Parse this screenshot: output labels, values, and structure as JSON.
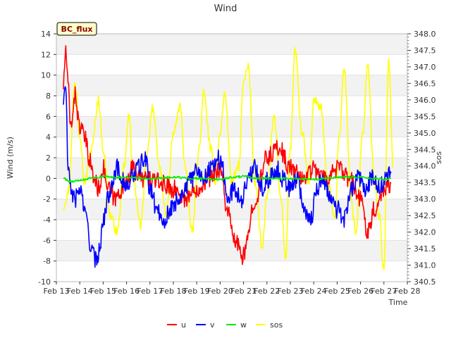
{
  "chart_data": {
    "type": "line",
    "title": "Wind",
    "badge": "BC_flux",
    "xlabel": "Time",
    "ylabel": "Wind (m/s)",
    "y2label": "sos",
    "xlim": [
      13,
      28
    ],
    "ylim": [
      -10,
      14
    ],
    "y2lim": [
      340.5,
      348.0
    ],
    "x_tick_values": [
      13,
      14,
      15,
      16,
      17,
      18,
      19,
      20,
      21,
      22,
      23,
      24,
      25,
      26,
      27,
      28
    ],
    "x_tick_labels": [
      "Feb 13",
      "Feb 14",
      "Feb 15",
      "Feb 16",
      "Feb 17",
      "Feb 18",
      "Feb 19",
      "Feb 20",
      "Feb 21",
      "Feb 22",
      "Feb 23",
      "Feb 24",
      "Feb 25",
      "Feb 26",
      "Feb 27",
      "Feb 28"
    ],
    "y_ticks": [
      "-10",
      "-8",
      "-6",
      "-4",
      "-2",
      "0",
      "2",
      "4",
      "6",
      "8",
      "10",
      "12",
      "14"
    ],
    "y2_ticks": [
      "340.5",
      "341.0",
      "341.5",
      "342.0",
      "342.5",
      "343.0",
      "343.5",
      "344.0",
      "344.5",
      "345.0",
      "345.5",
      "346.0",
      "346.5",
      "347.0",
      "347.5",
      "348.0"
    ],
    "legend": [
      "u",
      "v",
      "w",
      "sos"
    ],
    "series": [
      {
        "name": "u",
        "axis": "left",
        "color": "#ff0000",
        "x": [
          13.3,
          13.4,
          13.5,
          13.6,
          13.8,
          14.0,
          14.2,
          14.4,
          14.6,
          14.8,
          15.0,
          15.2,
          15.5,
          15.8,
          16.0,
          16.3,
          16.6,
          17.0,
          17.5,
          18.0,
          18.5,
          19.0,
          19.5,
          20.0,
          20.3,
          20.6,
          21.0,
          21.5,
          22.0,
          22.5,
          23.0,
          23.5,
          24.0,
          24.5,
          25.0,
          25.5,
          26.0,
          26.3,
          26.6,
          27.0,
          27.3
        ],
        "values": [
          9,
          12.5,
          9,
          5,
          8,
          5,
          4,
          2,
          0,
          -1,
          1,
          -1,
          -2,
          -1,
          0,
          1,
          0,
          0,
          -0.5,
          -1,
          -2,
          -1,
          0,
          1,
          -3,
          -6,
          -7.5,
          -2,
          2,
          3,
          1,
          0,
          1,
          0,
          1,
          0,
          -2,
          -5,
          -3,
          -1,
          -0.5
        ]
      },
      {
        "name": "v",
        "axis": "left",
        "color": "#0000ff",
        "x": [
          13.3,
          13.4,
          13.5,
          13.6,
          13.8,
          14.0,
          14.3,
          14.5,
          14.7,
          14.9,
          15.0,
          15.2,
          15.4,
          15.6,
          15.8,
          16.0,
          16.2,
          16.5,
          16.8,
          17.0,
          17.3,
          17.6,
          17.9,
          18.2,
          18.5,
          18.8,
          19.0,
          19.3,
          19.6,
          19.9,
          20.1,
          20.3,
          20.6,
          20.9,
          21.2,
          21.5,
          21.8,
          22.1,
          22.4,
          22.7,
          23.0,
          23.3,
          23.6,
          23.9,
          24.1,
          24.4,
          24.7,
          25.0,
          25.3,
          25.6,
          25.9,
          26.2,
          26.5,
          26.8,
          27.1,
          27.3
        ],
        "values": [
          7.5,
          9,
          1,
          -1,
          -2,
          -1,
          -4,
          -7,
          -8,
          -6,
          -4,
          -2,
          0,
          1,
          0,
          -1,
          0,
          1,
          2,
          -1,
          -3,
          -4,
          -3,
          -2,
          -1,
          0,
          1,
          0,
          1,
          2,
          1,
          -2,
          -1,
          -2,
          0,
          1,
          -1,
          0,
          1,
          0,
          -1,
          0,
          -3,
          -4,
          -1,
          0,
          -2,
          -3,
          -4,
          -1,
          0,
          -1,
          0,
          -1,
          0,
          0.5
        ]
      },
      {
        "name": "w",
        "axis": "left",
        "color": "#00ee00",
        "x": [
          13.3,
          13.6,
          14.0,
          14.5,
          15.0,
          15.5,
          16.0,
          17.0,
          18.0,
          19.0,
          20.0,
          20.5,
          21.0,
          21.5,
          22.0,
          23.0,
          24.0,
          25.0,
          26.0,
          26.5,
          27.0,
          27.3
        ],
        "values": [
          0,
          -0.3,
          -0.2,
          0,
          0.2,
          0.1,
          0.1,
          0,
          0.1,
          0,
          -0.1,
          0.1,
          0.2,
          0,
          0,
          0,
          -0.1,
          0.1,
          0.1,
          0,
          -0.1,
          0
        ]
      },
      {
        "name": "sos",
        "axis": "right",
        "color": "#ffff00",
        "x": [
          13.3,
          13.5,
          13.8,
          14.0,
          14.2,
          14.5,
          14.8,
          15.0,
          15.3,
          15.6,
          15.9,
          16.1,
          16.3,
          16.6,
          16.9,
          17.1,
          17.4,
          17.7,
          18.0,
          18.3,
          18.5,
          18.8,
          19.1,
          19.3,
          19.6,
          19.8,
          20.0,
          20.2,
          20.5,
          20.8,
          21.0,
          21.2,
          21.5,
          21.8,
          22.0,
          22.3,
          22.6,
          22.8,
          23.0,
          23.2,
          23.5,
          23.8,
          24.0,
          24.3,
          24.6,
          24.9,
          25.1,
          25.3,
          25.6,
          25.8,
          26.1,
          26.3,
          26.6,
          26.8,
          27.0,
          27.2,
          27.4
        ],
        "values": [
          342.8,
          343.2,
          346.5,
          345.0,
          343.5,
          344.5,
          346.0,
          344.5,
          342.5,
          342.0,
          344.0,
          345.5,
          343.5,
          342.2,
          344.5,
          345.8,
          344.0,
          342.5,
          345.0,
          345.8,
          344.0,
          342.0,
          344.5,
          346.2,
          344.5,
          343.5,
          345.0,
          346.2,
          343.5,
          344.0,
          346.5,
          347.0,
          343.5,
          341.5,
          343.0,
          345.5,
          343.0,
          341.2,
          344.5,
          347.5,
          345.0,
          343.5,
          346.0,
          345.8,
          343.5,
          342.5,
          345.0,
          347.0,
          343.0,
          342.0,
          345.0,
          347.0,
          343.5,
          342.5,
          340.8,
          347.2,
          344.0
        ]
      }
    ]
  }
}
